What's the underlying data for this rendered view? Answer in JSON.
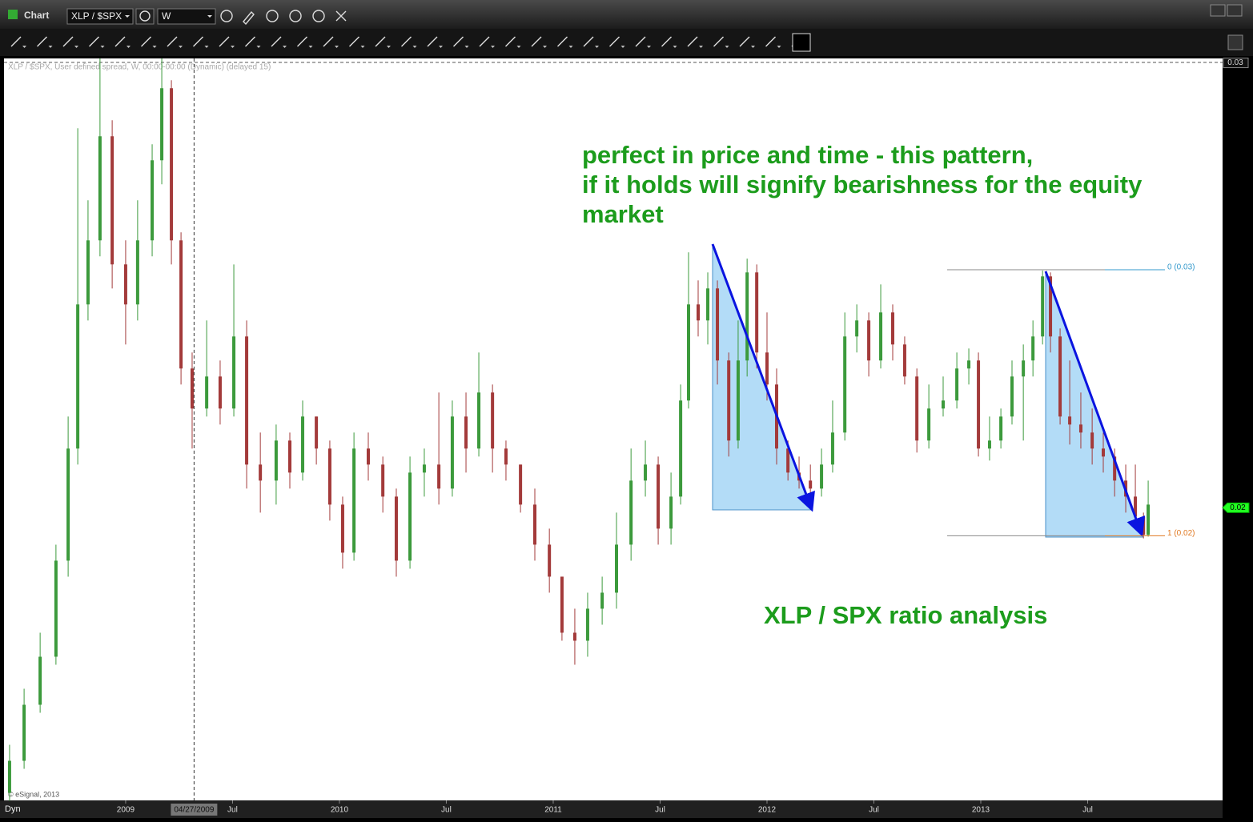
{
  "window": {
    "title": "Chart",
    "symbol": "XLP / $SPX",
    "interval": "W",
    "info": "XLP / $SPX, User defined spread, W, 00:00-00:00 (Dynamic) (delayed 15)",
    "copyright": "© eSignal, 2013",
    "mode": "Dyn"
  },
  "chart_data": {
    "type": "candlestick",
    "annotations": [
      "perfect in price and time - this pattern,",
      "if it holds will signify bearishness for the equity",
      "market",
      "XLP / SPX ratio analysis"
    ],
    "up_color": "#3c9a3c",
    "down_color": "#a33a3a",
    "xlim": [
      2008.431,
      2014.131
    ],
    "ylim": [
      0.01342,
      0.0301
    ],
    "xticks": [
      2009,
      {
        "value": 2009.5,
        "label": "Jul"
      },
      2010,
      {
        "value": 2010.5,
        "label": "Jul"
      },
      2011,
      {
        "value": 2011.5,
        "label": "Jul"
      },
      2012,
      {
        "value": 2012.5,
        "label": "Jul"
      },
      2013,
      {
        "value": 2013.5,
        "label": "Jul"
      }
    ],
    "yticks": [
      0.03
    ],
    "cursor_date": {
      "value": 2009.32,
      "label": "04/27/2009"
    },
    "last_price": 0.02,
    "fib_levels": [
      {
        "value": 0.02535,
        "label": "0 (0.03)"
      },
      {
        "value": 0.01937,
        "label": "1 (0.02)"
      }
    ],
    "x": [
      2008.457,
      2008.525,
      2008.6,
      2008.674,
      2008.731,
      2008.776,
      2008.824,
      2008.88,
      2008.937,
      2009.0,
      2009.056,
      2009.124,
      2009.169,
      2009.214,
      2009.259,
      2009.311,
      2009.379,
      2009.442,
      2009.506,
      2009.566,
      2009.63,
      2009.704,
      2009.768,
      2009.828,
      2009.892,
      2009.955,
      2010.015,
      2010.068,
      2010.135,
      2010.203,
      2010.266,
      2010.33,
      2010.397,
      2010.465,
      2010.528,
      2010.592,
      2010.652,
      2010.716,
      2010.779,
      2010.847,
      2010.914,
      2010.982,
      2011.041,
      2011.101,
      2011.161,
      2011.229,
      2011.296,
      2011.364,
      2011.431,
      2011.491,
      2011.551,
      2011.596,
      2011.633,
      2011.678,
      2011.723,
      2011.768,
      2011.821,
      2011.865,
      2011.907,
      2011.952,
      2012.0,
      2012.045,
      2012.098,
      2012.15,
      2012.203,
      2012.255,
      2012.307,
      2012.364,
      2012.42,
      2012.476,
      2012.532,
      2012.588,
      2012.644,
      2012.701,
      2012.757,
      2012.824,
      2012.888,
      2012.944,
      2012.989,
      2013.041,
      2013.094,
      2013.146,
      2013.199,
      2013.244,
      2013.289,
      2013.326,
      2013.371,
      2013.416,
      2013.468,
      2013.521,
      2013.573,
      2013.626,
      2013.678,
      2013.723,
      2013.761,
      2013.783
    ],
    "open": [
      0.01359,
      0.01431,
      0.01557,
      0.01665,
      0.01881,
      0.02133,
      0.02457,
      0.02601,
      0.02835,
      0.02547,
      0.02457,
      0.02601,
      0.02781,
      0.02943,
      0.02601,
      0.02313,
      0.02223,
      0.02295,
      0.02223,
      0.02385,
      0.02097,
      0.02061,
      0.02151,
      0.02079,
      0.02205,
      0.02133,
      0.02007,
      0.01899,
      0.02133,
      0.02097,
      0.02025,
      0.01881,
      0.02079,
      0.02097,
      0.02043,
      0.02205,
      0.02133,
      0.02259,
      0.02133,
      0.02097,
      0.02007,
      0.01917,
      0.01845,
      0.01719,
      0.01701,
      0.01773,
      0.01809,
      0.01917,
      0.02061,
      0.02097,
      0.01953,
      0.02025,
      0.02241,
      0.02457,
      0.02421,
      0.02493,
      0.02331,
      0.02151,
      0.02331,
      0.02529,
      0.02349,
      0.02277,
      0.02133,
      0.02079,
      0.02061,
      0.02043,
      0.02097,
      0.02169,
      0.02385,
      0.02421,
      0.02331,
      0.02439,
      0.02367,
      0.02295,
      0.02151,
      0.02223,
      0.02241,
      0.02313,
      0.02331,
      0.02133,
      0.02151,
      0.02205,
      0.02295,
      0.02331,
      0.02385,
      0.0252,
      0.02385,
      0.02205,
      0.02187,
      0.02169,
      0.02133,
      0.02115,
      0.02061,
      0.02025,
      0.0198,
      0.01939
    ],
    "high": [
      0.01467,
      0.01593,
      0.01719,
      0.01917,
      0.02205,
      0.02853,
      0.02691,
      0.0301,
      0.02871,
      0.02601,
      0.02691,
      0.02817,
      0.0301,
      0.02961,
      0.02619,
      0.02349,
      0.02421,
      0.02331,
      0.02547,
      0.02421,
      0.02169,
      0.02187,
      0.02169,
      0.02241,
      0.02205,
      0.02151,
      0.02025,
      0.02169,
      0.02169,
      0.02115,
      0.02043,
      0.02115,
      0.02133,
      0.02259,
      0.02241,
      0.02259,
      0.02349,
      0.02277,
      0.02151,
      0.02097,
      0.02043,
      0.01953,
      0.01845,
      0.01773,
      0.01809,
      0.01845,
      0.01989,
      0.02133,
      0.02151,
      0.02115,
      0.02079,
      0.02277,
      0.02574,
      0.02511,
      0.02529,
      0.02511,
      0.02349,
      0.02421,
      0.0256,
      0.02547,
      0.02439,
      0.02313,
      0.02151,
      0.02115,
      0.02097,
      0.02133,
      0.02241,
      0.02439,
      0.02457,
      0.02439,
      0.02502,
      0.02457,
      0.02385,
      0.02313,
      0.02277,
      0.02295,
      0.02349,
      0.02358,
      0.02349,
      0.02205,
      0.02223,
      0.02331,
      0.02367,
      0.02421,
      0.02533,
      0.02529,
      0.02403,
      0.02331,
      0.02259,
      0.02223,
      0.02169,
      0.02133,
      0.02097,
      0.02097,
      0.01989,
      0.02061
    ],
    "low": [
      0.01341,
      0.01413,
      0.01539,
      0.01647,
      0.01845,
      0.02097,
      0.02421,
      0.02565,
      0.02493,
      0.02367,
      0.02421,
      0.02565,
      0.02727,
      0.02547,
      0.02277,
      0.02133,
      0.02205,
      0.02187,
      0.02205,
      0.02043,
      0.01989,
      0.02007,
      0.02043,
      0.02061,
      0.02097,
      0.01971,
      0.01863,
      0.01881,
      0.02061,
      0.01989,
      0.01845,
      0.01863,
      0.02025,
      0.02007,
      0.02025,
      0.02079,
      0.02115,
      0.02079,
      0.02061,
      0.01989,
      0.01881,
      0.01809,
      0.01701,
      0.01647,
      0.01665,
      0.01737,
      0.01773,
      0.01881,
      0.02025,
      0.01917,
      0.01917,
      0.02007,
      0.02223,
      0.02385,
      0.02367,
      0.02277,
      0.02115,
      0.02133,
      0.02295,
      0.02313,
      0.02241,
      0.02097,
      0.02061,
      0.02043,
      0.02007,
      0.02025,
      0.02079,
      0.02151,
      0.02349,
      0.02295,
      0.02313,
      0.02331,
      0.02277,
      0.02124,
      0.02133,
      0.02205,
      0.02223,
      0.02277,
      0.02115,
      0.02106,
      0.02133,
      0.02187,
      0.02151,
      0.02295,
      0.02367,
      0.02349,
      0.02187,
      0.02142,
      0.02133,
      0.02097,
      0.02079,
      0.02025,
      0.01989,
      0.01953,
      0.01931,
      0.01935
    ],
    "close": [
      0.01431,
      0.01557,
      0.01665,
      0.01881,
      0.02133,
      0.02457,
      0.02601,
      0.02835,
      0.02547,
      0.02457,
      0.02601,
      0.02781,
      0.02943,
      0.02601,
      0.02313,
      0.02223,
      0.02295,
      0.02223,
      0.02385,
      0.02097,
      0.02061,
      0.02151,
      0.02079,
      0.02205,
      0.02133,
      0.02007,
      0.01899,
      0.02133,
      0.02097,
      0.02025,
      0.01881,
      0.02079,
      0.02097,
      0.02043,
      0.02205,
      0.02133,
      0.02259,
      0.02133,
      0.02097,
      0.02007,
      0.01917,
      0.01845,
      0.01719,
      0.01701,
      0.01773,
      0.01809,
      0.01917,
      0.02061,
      0.02097,
      0.01953,
      0.02025,
      0.02241,
      0.02457,
      0.02421,
      0.02493,
      0.02331,
      0.02151,
      0.02331,
      0.02529,
      0.02349,
      0.02277,
      0.02133,
      0.02079,
      0.02061,
      0.02043,
      0.02097,
      0.02169,
      0.02385,
      0.02421,
      0.02331,
      0.02439,
      0.02367,
      0.02295,
      0.02151,
      0.02223,
      0.02241,
      0.02313,
      0.02331,
      0.02133,
      0.02151,
      0.02205,
      0.02295,
      0.02331,
      0.02385,
      0.0252,
      0.02385,
      0.02205,
      0.02187,
      0.02169,
      0.02133,
      0.02115,
      0.02061,
      0.02025,
      0.0198,
      0.01939,
      0.02007
    ]
  }
}
